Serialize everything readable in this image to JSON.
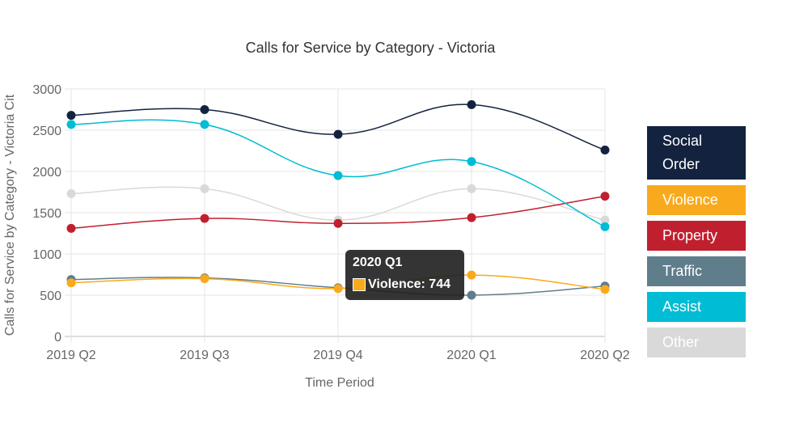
{
  "chart_data": {
    "type": "line",
    "title": "Calls for Service by Category - Victoria",
    "xlabel": "Time Period",
    "ylabel": "Calls for Service by Category - Victoria Cit",
    "categories": [
      "2019 Q2",
      "2019 Q3",
      "2019 Q4",
      "2020 Q1",
      "2020 Q2"
    ],
    "ylim": [
      0,
      3000
    ],
    "yticks": [
      "0",
      "500",
      "1000",
      "1500",
      "2000",
      "2500",
      "3000"
    ],
    "grid": true,
    "legend_placement": "right",
    "series": [
      {
        "name": "Social Order",
        "color": "#13233f",
        "values": [
          2680,
          2750,
          2450,
          2810,
          2260
        ]
      },
      {
        "name": "Violence",
        "color": "#f9aa1c",
        "values": [
          650,
          700,
          580,
          744,
          570
        ]
      },
      {
        "name": "Property",
        "color": "#c0202e",
        "values": [
          1310,
          1430,
          1370,
          1440,
          1700
        ]
      },
      {
        "name": "Traffic",
        "color": "#607d8b",
        "values": [
          690,
          710,
          590,
          500,
          610
        ]
      },
      {
        "name": "Assist",
        "color": "#00bcd4",
        "values": [
          2570,
          2570,
          1950,
          2120,
          1330
        ]
      },
      {
        "name": "Other",
        "color": "#d9d9d9",
        "values": [
          1730,
          1790,
          1410,
          1790,
          1410
        ]
      }
    ],
    "tooltip": {
      "title": "2020 Q1",
      "label": "Violence: 744"
    }
  }
}
